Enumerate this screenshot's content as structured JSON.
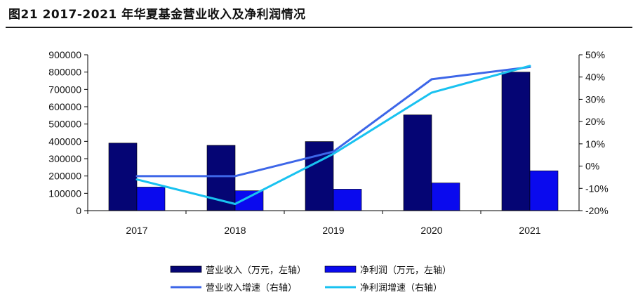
{
  "figure_title": "图21 2017-2021 年华夏基金营业收入及净利润情况",
  "chart_data": {
    "type": "bar",
    "categories": [
      "2017",
      "2018",
      "2019",
      "2020",
      "2021"
    ],
    "series": [
      {
        "name": "营业收入（万元，左轴）",
        "type": "bar",
        "axis": "left",
        "color": "#050574",
        "values": [
          390000,
          377000,
          399000,
          553000,
          800000
        ]
      },
      {
        "name": "净利润（万元，左轴）",
        "type": "bar",
        "axis": "left",
        "color": "#0a0aee",
        "values": [
          136000,
          115000,
          124000,
          160000,
          230000
        ]
      },
      {
        "name": "营业收入增速（右轴）",
        "type": "line",
        "axis": "right",
        "color": "#3d66e8",
        "values": [
          -4.5,
          -4.5,
          6.5,
          39,
          44.5
        ]
      },
      {
        "name": "净利润增速（右轴）",
        "type": "line",
        "axis": "right",
        "color": "#19c2f0",
        "values": [
          -6,
          -17,
          5.5,
          33,
          45
        ]
      }
    ],
    "y_left": {
      "min": 0,
      "max": 900000,
      "step": 100000,
      "tick_labels": [
        "0",
        "100000",
        "200000",
        "300000",
        "400000",
        "500000",
        "600000",
        "700000",
        "800000",
        "900000"
      ]
    },
    "y_right": {
      "min": -20,
      "max": 50,
      "step": 10,
      "tick_labels": [
        "-20%",
        "-10%",
        "0%",
        "10%",
        "20%",
        "30%",
        "40%",
        "50%"
      ]
    },
    "grid": false,
    "legend_position": "bottom"
  }
}
